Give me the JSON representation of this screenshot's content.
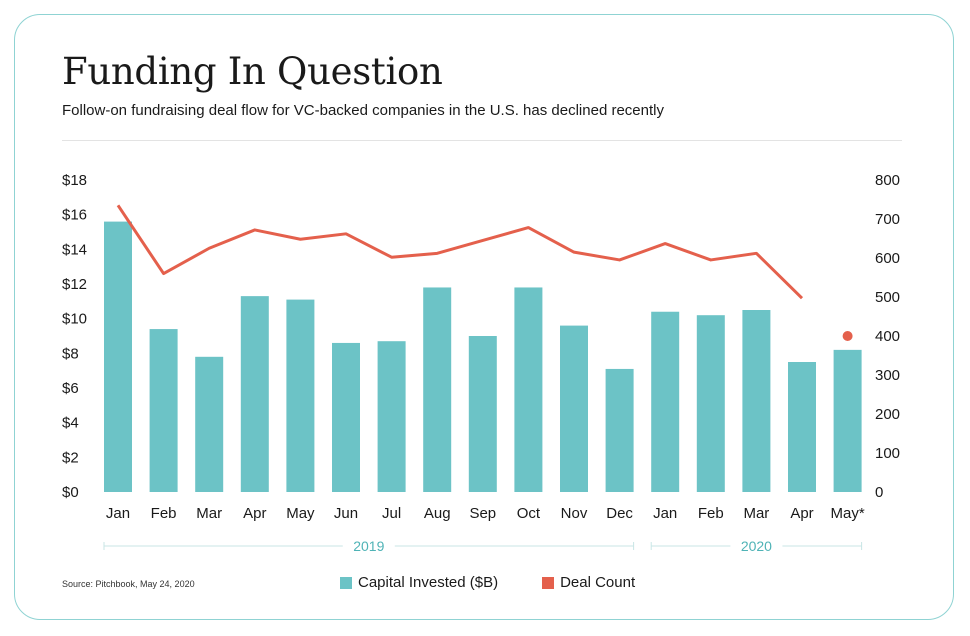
{
  "header": {
    "title": "Funding In Question",
    "subtitle": "Follow-on fundraising deal flow for VC-backed companies in the U.S. has declined recently"
  },
  "footer": {
    "source": "Source: Pitchbook, May 24, 2020"
  },
  "colors": {
    "bar": "#6cc3c6",
    "line": "#e4604c",
    "border": "#8fd3d3",
    "year_rule": "#c9e6e6",
    "year_text": "#4fb3b6"
  },
  "chart_data": {
    "type": "bar",
    "title": "Funding In Question",
    "categories": [
      "Jan",
      "Feb",
      "Mar",
      "Apr",
      "May",
      "Jun",
      "Jul",
      "Aug",
      "Sep",
      "Oct",
      "Nov",
      "Dec",
      "Jan",
      "Feb",
      "Mar",
      "Apr",
      "May*"
    ],
    "groups": [
      {
        "label": "2019",
        "from": 0,
        "to": 11
      },
      {
        "label": "2020",
        "from": 12,
        "to": 16
      }
    ],
    "series": [
      {
        "name": "Capital Invested ($B)",
        "type": "bar",
        "axis": "left",
        "values": [
          15.6,
          9.4,
          7.8,
          11.3,
          11.1,
          8.6,
          8.7,
          11.8,
          9.0,
          11.8,
          9.6,
          7.1,
          10.4,
          10.2,
          10.5,
          7.5,
          8.2
        ]
      },
      {
        "name": "Deal Count",
        "type": "line",
        "axis": "right",
        "values": [
          735,
          560,
          625,
          672,
          648,
          662,
          602,
          612,
          645,
          678,
          615,
          595,
          637,
          595,
          612,
          497,
          null
        ],
        "extra_points": [
          {
            "index": 16,
            "value": 400
          }
        ]
      }
    ],
    "left_axis": {
      "ylim": [
        0,
        18
      ],
      "ticks": [
        0,
        2,
        4,
        6,
        8,
        10,
        12,
        14,
        16,
        18
      ],
      "tick_labels": [
        "$0",
        "$2",
        "$4",
        "$6",
        "$8",
        "$10",
        "$12",
        "$14",
        "$16",
        "$18"
      ]
    },
    "right_axis": {
      "ylim": [
        0,
        800
      ],
      "ticks": [
        0,
        100,
        200,
        300,
        400,
        500,
        600,
        700,
        800
      ],
      "tick_labels": [
        "0",
        "100",
        "200",
        "300",
        "400",
        "500",
        "600",
        "700",
        "800"
      ]
    },
    "legend": [
      "Capital Invested ($B)",
      "Deal Count"
    ],
    "legend_position": "bottom-center",
    "grid": false
  }
}
